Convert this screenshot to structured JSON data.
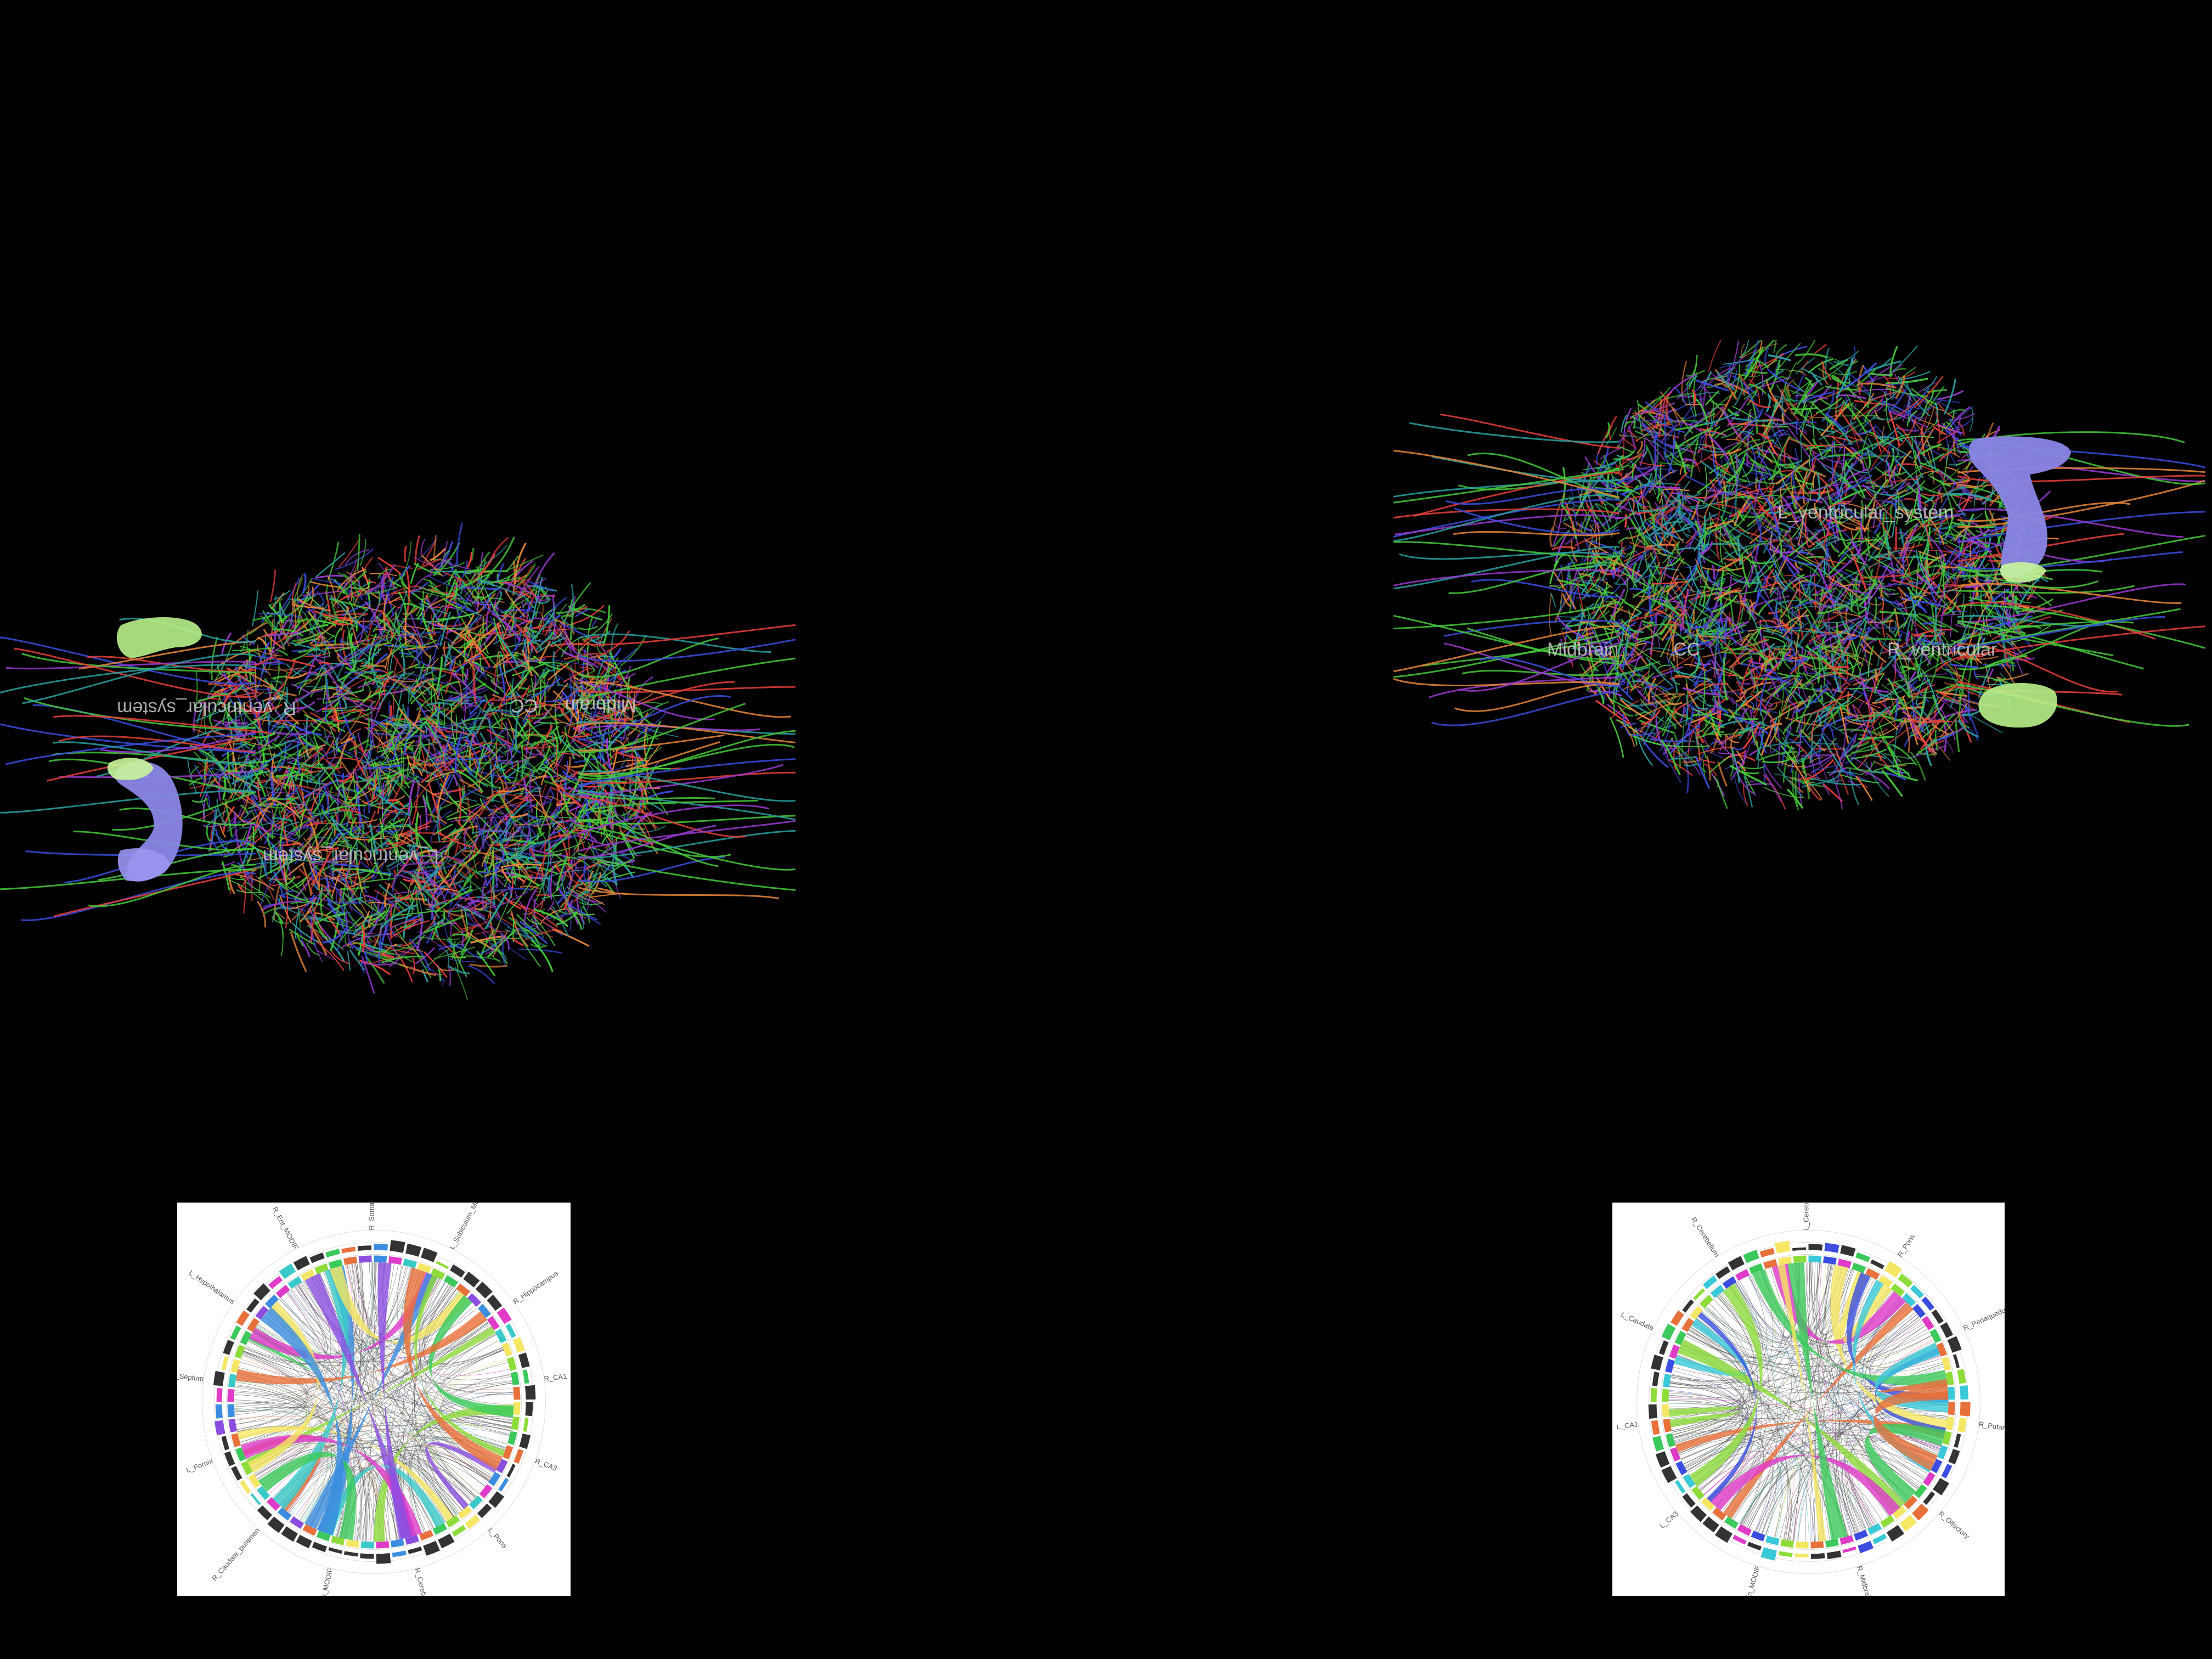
{
  "colors": {
    "background": "#000000",
    "fiber_red": "#e8403a",
    "fiber_green": "#45c93a",
    "fiber_blue": "#3a4de0",
    "fiber_orange": "#e8873a",
    "ventricle": "#8a86e6",
    "structure_green": "#b8f08a",
    "circos_bg": "#ffffff"
  },
  "left_brain": {
    "labels": [
      "R_ventricular_system",
      "L_ventricular_system",
      "CC",
      "Midbrain"
    ]
  },
  "right_brain": {
    "labels": [
      "L_ventricular_system",
      "R_ventricular",
      "CC",
      "Midbrain"
    ]
  },
  "left_circos": {
    "labels": [
      "R_Somatosensory",
      "L_Subiculum_MODIF",
      "R_Hippocampus",
      "R_CA1",
      "R_CA3",
      "L_Pons",
      "R_Cerebellum_",
      "L_Thalamus_MODIF",
      "R_Caudate_putamen",
      "L_Fornix",
      "R_Septum",
      "L_Hypothalamus",
      "R_Ent_MODIF"
    ],
    "ribbon_colors": [
      "#f5e663",
      "#8ddc3a",
      "#3ac95a",
      "#e8703a",
      "#8a4de0",
      "#3a8de0",
      "#e03ac9",
      "#3ac9c9"
    ]
  },
  "right_circos": {
    "labels": [
      "L_Cerebellum",
      "R_Pons",
      "R_Periaqueductal_grey",
      "R_Putamen_MODIF",
      "R_Olfactory",
      "R_Midbrain",
      "L_Midbrain_MODIF",
      "L_CA3",
      "L_CA1",
      "L_Caudate",
      "R_Cerebellum"
    ],
    "ribbon_colors": [
      "#e8703a",
      "#f5e663",
      "#8ddc3a",
      "#3ac9d9",
      "#3a4de0",
      "#e03ac9",
      "#3ac95a"
    ]
  }
}
